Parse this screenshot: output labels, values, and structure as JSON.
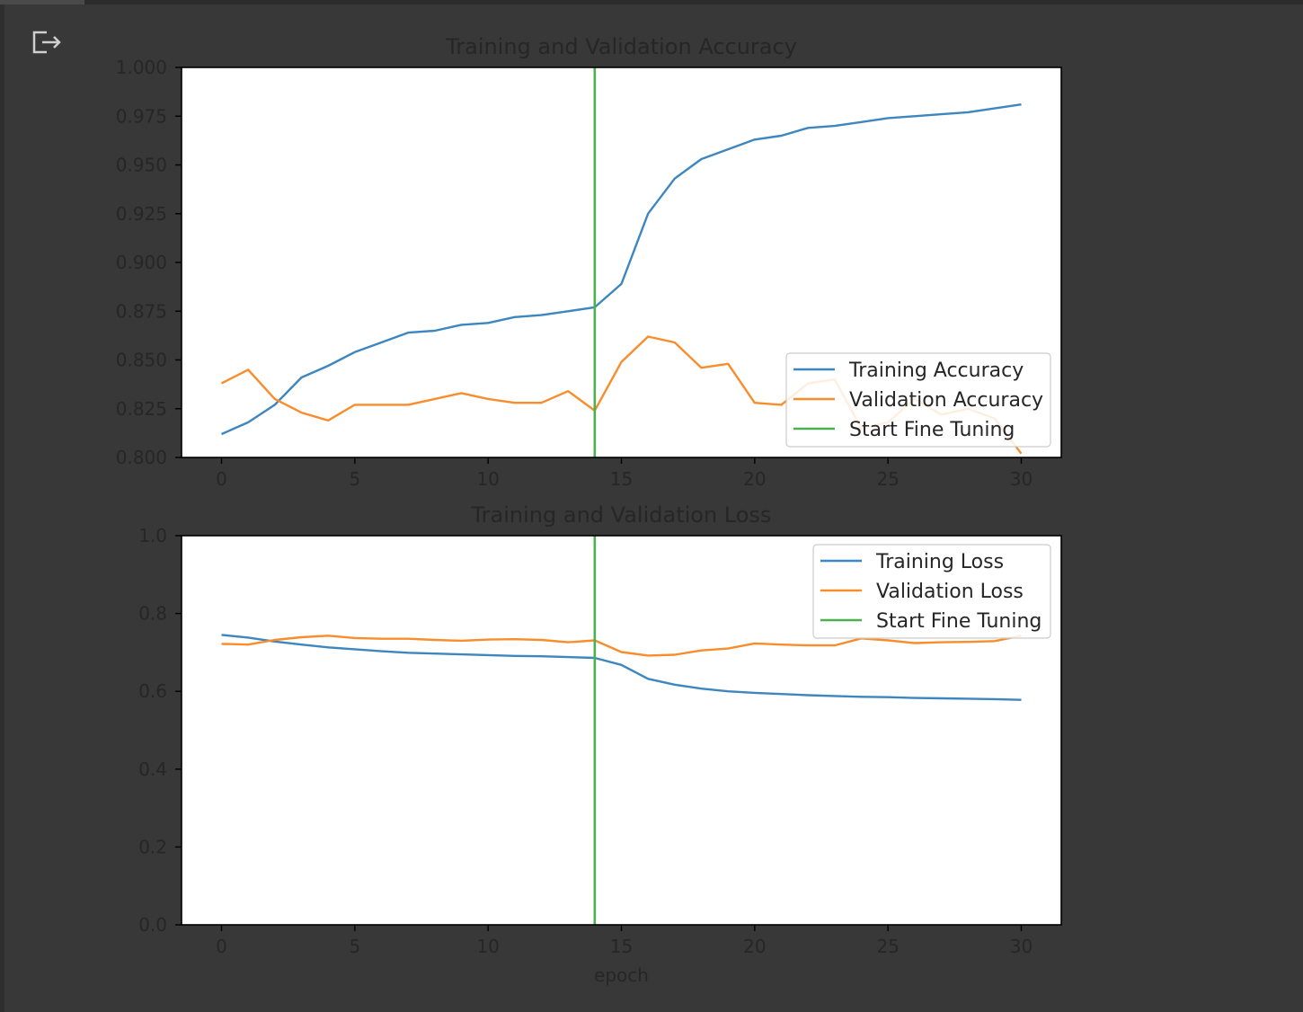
{
  "icons": {
    "output": "output-redirect-icon"
  },
  "colors": {
    "background": "#383838",
    "training": "#3d86bf",
    "validation": "#f98c2b",
    "fine_tuning": "#4caf50",
    "axes_text": "#262626"
  },
  "chart_data": [
    {
      "type": "line",
      "title": "Training and Validation Accuracy",
      "xlabel": "",
      "ylabel": "",
      "xlim": [
        -1.5,
        31.5
      ],
      "ylim": [
        0.8,
        1.0
      ],
      "xticks": [
        "0",
        "5",
        "10",
        "15",
        "20",
        "25",
        "30"
      ],
      "yticks": [
        "0.800",
        "0.825",
        "0.850",
        "0.875",
        "0.900",
        "0.925",
        "0.950",
        "0.975",
        "1.000"
      ],
      "legend_position": "lower right",
      "grid": false,
      "x": [
        0,
        1,
        2,
        3,
        4,
        5,
        6,
        7,
        8,
        9,
        10,
        11,
        12,
        13,
        14,
        15,
        16,
        17,
        18,
        19,
        20,
        21,
        22,
        23,
        24,
        25,
        26,
        27,
        28,
        29,
        30
      ],
      "series": [
        {
          "name": "Training Accuracy",
          "color": "#3d86bf",
          "values": [
            0.812,
            0.818,
            0.827,
            0.841,
            0.847,
            0.854,
            0.859,
            0.864,
            0.865,
            0.868,
            0.869,
            0.872,
            0.873,
            0.875,
            0.877,
            0.889,
            0.925,
            0.943,
            0.953,
            0.958,
            0.963,
            0.965,
            0.969,
            0.97,
            0.972,
            0.974,
            0.975,
            0.976,
            0.977,
            0.979,
            0.981
          ]
        },
        {
          "name": "Validation Accuracy",
          "color": "#f98c2b",
          "values": [
            0.838,
            0.845,
            0.83,
            0.823,
            0.819,
            0.827,
            0.827,
            0.827,
            0.83,
            0.833,
            0.83,
            0.828,
            0.828,
            0.834,
            0.824,
            0.849,
            0.862,
            0.859,
            0.846,
            0.848,
            0.828,
            0.827,
            0.838,
            0.84,
            0.815,
            0.818,
            0.83,
            0.822,
            0.825,
            0.82,
            0.802
          ]
        }
      ],
      "vlines": [
        {
          "name": "Start Fine Tuning",
          "x": 14,
          "color": "#4caf50"
        }
      ]
    },
    {
      "type": "line",
      "title": "Training and Validation Loss",
      "xlabel": "epoch",
      "ylabel": "",
      "xlim": [
        -1.5,
        31.5
      ],
      "ylim": [
        0.0,
        1.0
      ],
      "xticks": [
        "0",
        "5",
        "10",
        "15",
        "20",
        "25",
        "30"
      ],
      "yticks": [
        "0.0",
        "0.2",
        "0.4",
        "0.6",
        "0.8",
        "1.0"
      ],
      "legend_position": "upper right",
      "grid": false,
      "x": [
        0,
        1,
        2,
        3,
        4,
        5,
        6,
        7,
        8,
        9,
        10,
        11,
        12,
        13,
        14,
        15,
        16,
        17,
        18,
        19,
        20,
        21,
        22,
        23,
        24,
        25,
        26,
        27,
        28,
        29,
        30
      ],
      "series": [
        {
          "name": "Training Loss",
          "color": "#3d86bf",
          "values": [
            0.745,
            0.738,
            0.728,
            0.72,
            0.713,
            0.708,
            0.703,
            0.699,
            0.697,
            0.695,
            0.693,
            0.691,
            0.69,
            0.688,
            0.686,
            0.668,
            0.632,
            0.617,
            0.607,
            0.6,
            0.596,
            0.593,
            0.59,
            0.588,
            0.586,
            0.585,
            0.583,
            0.582,
            0.581,
            0.58,
            0.578
          ]
        },
        {
          "name": "Validation Loss",
          "color": "#f98c2b",
          "values": [
            0.722,
            0.72,
            0.732,
            0.739,
            0.743,
            0.737,
            0.735,
            0.735,
            0.732,
            0.73,
            0.733,
            0.734,
            0.732,
            0.726,
            0.731,
            0.701,
            0.692,
            0.694,
            0.705,
            0.71,
            0.723,
            0.72,
            0.718,
            0.718,
            0.736,
            0.731,
            0.724,
            0.726,
            0.727,
            0.729,
            0.743
          ]
        }
      ],
      "vlines": [
        {
          "name": "Start Fine Tuning",
          "x": 14,
          "color": "#4caf50"
        }
      ]
    }
  ]
}
